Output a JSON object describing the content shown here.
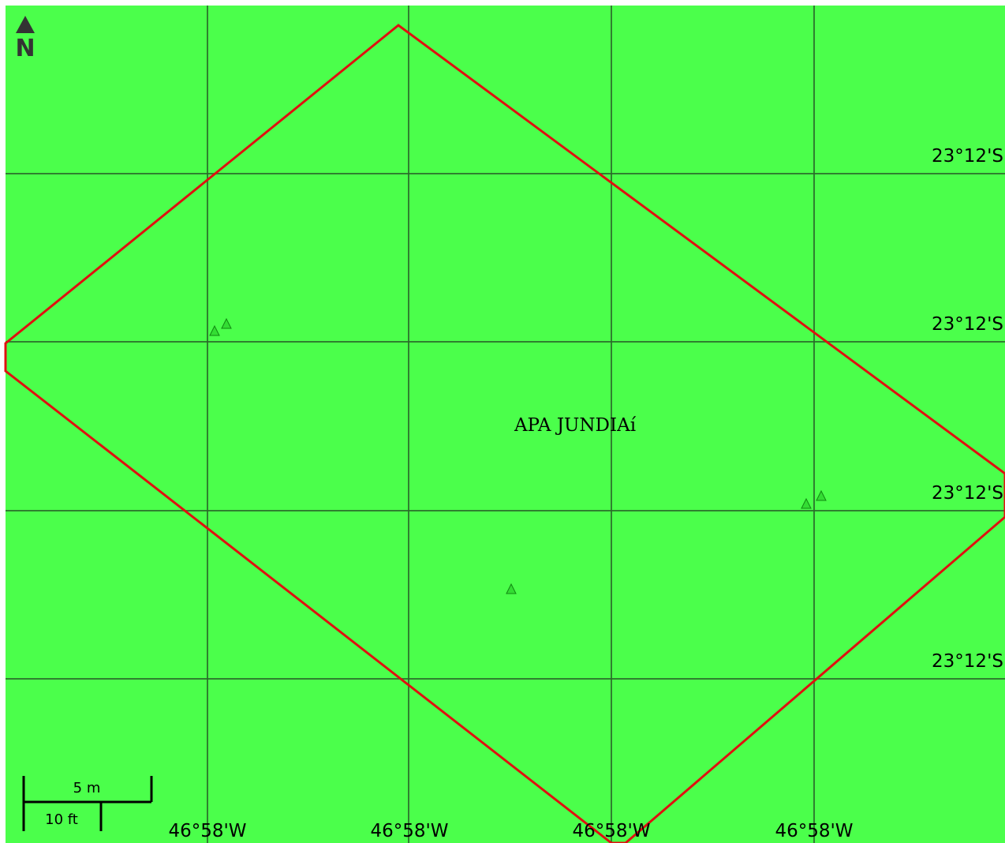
{
  "map": {
    "background_color": "#4bff4b",
    "grid_color": "#2a6a2a",
    "boundary_color": "#e01010",
    "marker_color": "#33dd33",
    "marker_stroke": "#118811",
    "area_label": "APA JUNDIAí",
    "north_arrow_letter": "N",
    "longitude_labels": [
      "46°58'W",
      "46°58'W",
      "46°58'W",
      "46°58'W"
    ],
    "latitude_labels": [
      "23°12'S",
      "23°12'S",
      "23°12'S",
      "23°12'S"
    ],
    "markers": [
      {
        "name": "marker-1",
        "icon": "triangle-marker-icon"
      },
      {
        "name": "marker-2",
        "icon": "triangle-marker-icon"
      },
      {
        "name": "marker-3",
        "icon": "triangle-marker-icon"
      },
      {
        "name": "marker-4",
        "icon": "triangle-marker-icon"
      },
      {
        "name": "marker-5",
        "icon": "triangle-marker-icon"
      }
    ]
  },
  "scale_bar": {
    "metric_label": "5 m",
    "imperial_label": "10 ft"
  }
}
